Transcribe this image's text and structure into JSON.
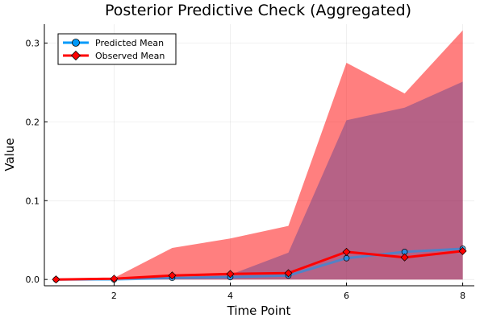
{
  "chart_data": {
    "type": "line",
    "title": "Posterior Predictive Check (Aggregated)",
    "xlabel": "Time Point",
    "ylabel": "Value",
    "x": [
      1,
      2,
      3,
      4,
      5,
      6,
      7,
      8
    ],
    "xlim": [
      0.8,
      8.2
    ],
    "ylim": [
      -0.008,
      0.324
    ],
    "xticks": [
      2,
      4,
      6,
      8
    ],
    "xtick_labels": [
      "2",
      "4",
      "6",
      "8"
    ],
    "yticks": [
      0.0,
      0.1,
      0.2,
      0.3
    ],
    "ytick_labels": [
      "0.0",
      "0.1",
      "0.2",
      "0.3"
    ],
    "grid": true,
    "legend_position": "top-left",
    "series": [
      {
        "name": "Predicted Mean",
        "color": "#009AFA",
        "marker": "circle",
        "values": [
          0.0,
          0.0,
          0.002,
          0.003,
          0.005,
          0.027,
          0.035,
          0.039
        ],
        "band_upper": [
          0.001,
          0.002,
          0.003,
          0.006,
          0.034,
          0.202,
          0.218,
          0.251
        ],
        "band_color": "#7A4A8C"
      },
      {
        "name": "Observed Mean",
        "color": "#FF0000",
        "marker": "diamond",
        "values": [
          0.0,
          0.001,
          0.005,
          0.007,
          0.008,
          0.035,
          0.028,
          0.036
        ],
        "band_upper": [
          0.001,
          0.002,
          0.04,
          0.052,
          0.068,
          0.275,
          0.236,
          0.316
        ],
        "band_color": "#FF0000"
      }
    ]
  }
}
